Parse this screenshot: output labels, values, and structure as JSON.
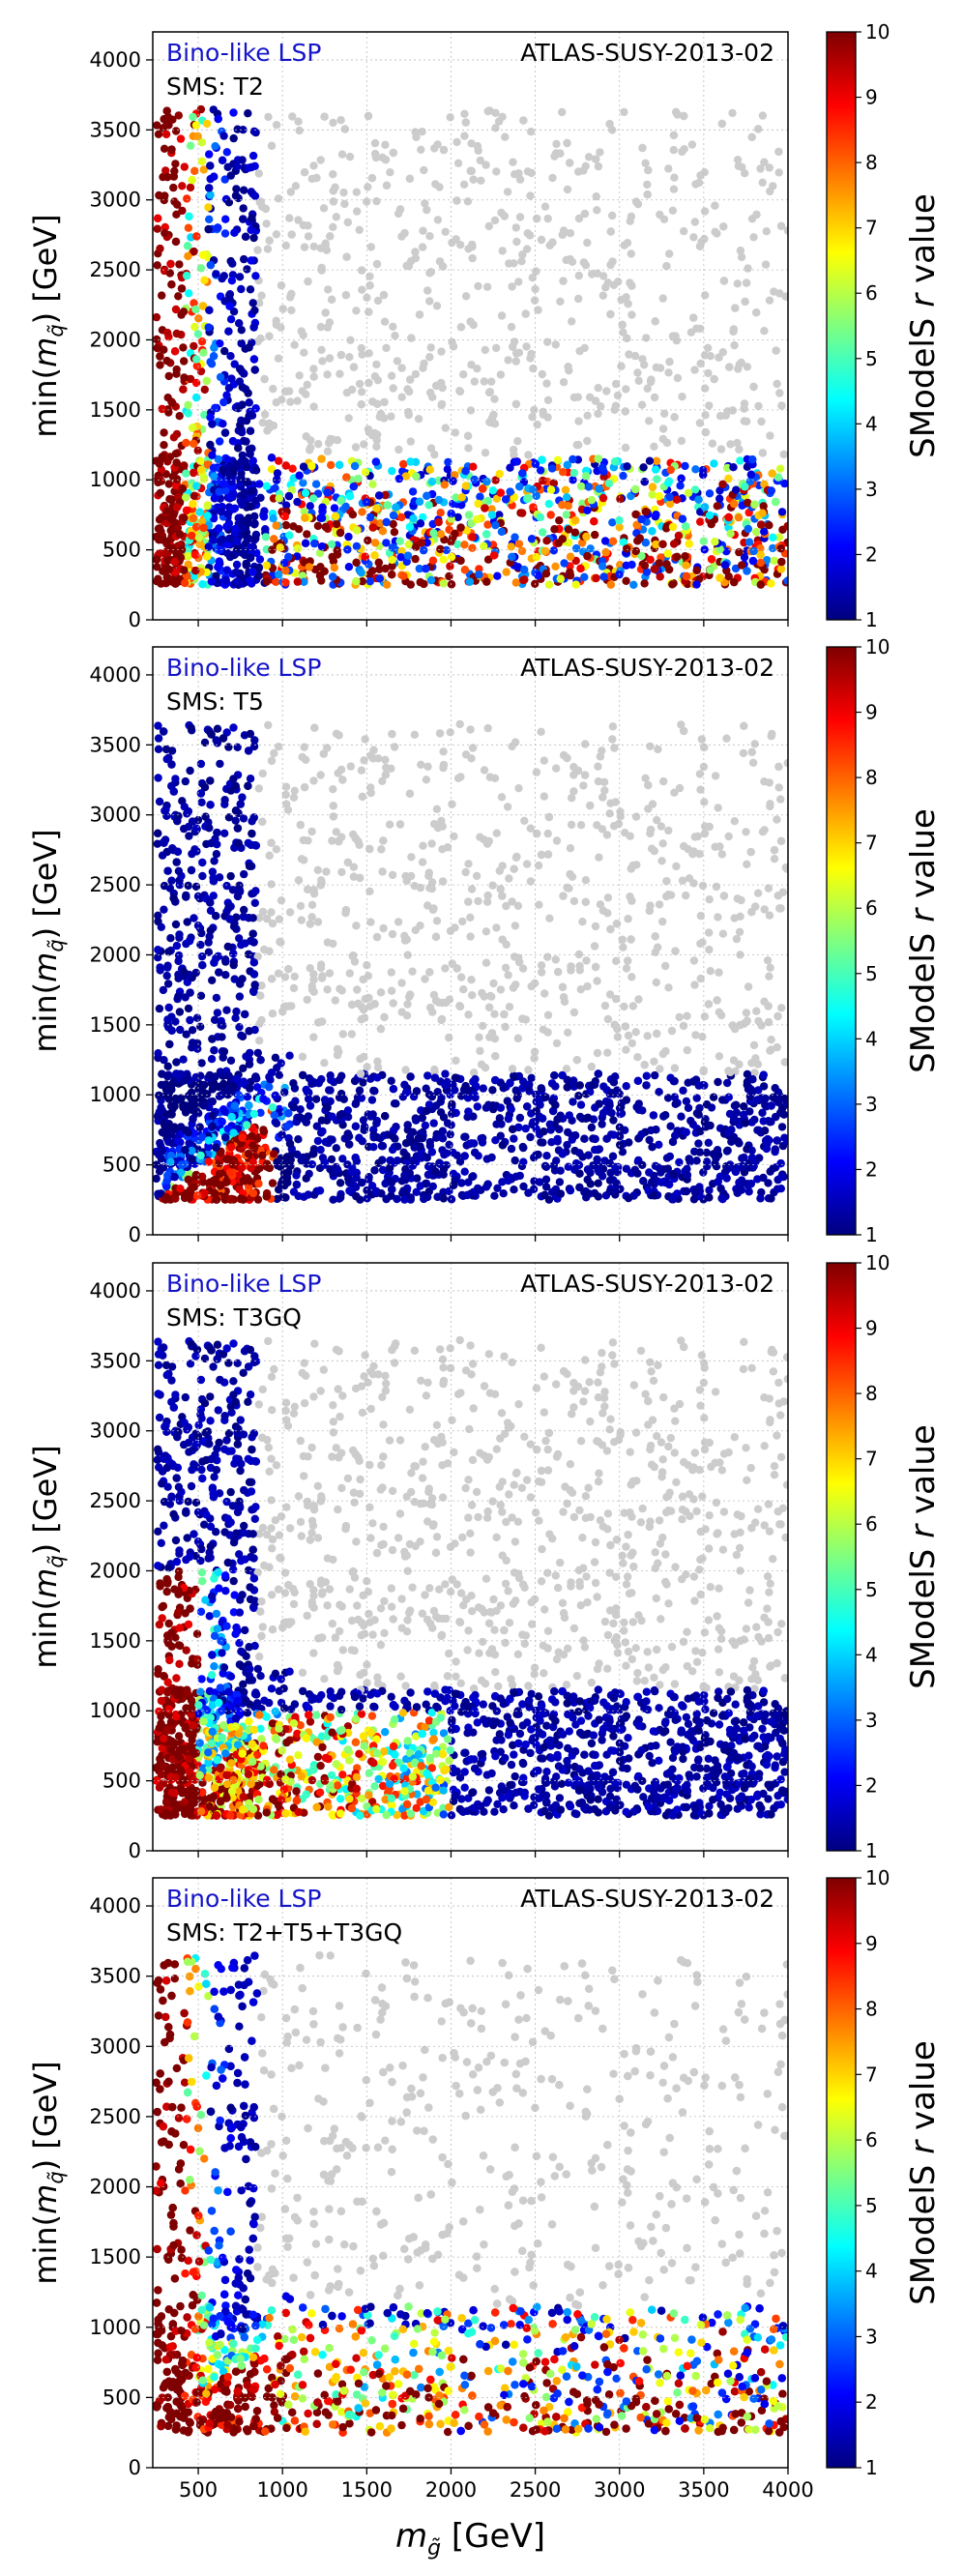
{
  "colorbar": {
    "label_prefix": "SModelS ",
    "label_var": "r",
    "label_suffix": " value",
    "range": [
      1,
      10
    ],
    "ticks": [
      "1",
      "2",
      "3",
      "4",
      "5",
      "6",
      "7",
      "8",
      "9",
      "10"
    ],
    "colors": [
      "#00007f",
      "#0000ff",
      "#007fff",
      "#00ffff",
      "#7fff7f",
      "#ffff00",
      "#ff7f00",
      "#ff0000",
      "#7f0000"
    ]
  },
  "shared_xaxis": {
    "label_main": "m",
    "label_sub": "g̃",
    "label_unit": " [GeV]",
    "range": [
      230,
      4000
    ],
    "ticks": [
      "500",
      "1000",
      "1500",
      "2000",
      "2500",
      "3000",
      "3500",
      "4000"
    ]
  },
  "yaxis": {
    "label_prefix": "min(",
    "label_main": "m",
    "label_sub": "q̃",
    "label_suffix": ") [GeV]",
    "range": [
      0,
      4200
    ],
    "ticks": [
      "0",
      "500",
      "1000",
      "1500",
      "2000",
      "2500",
      "3000",
      "3500",
      "4000"
    ]
  },
  "chart_data": [
    {
      "type": "scatter",
      "lsp_label": "Bino-like LSP",
      "analysis": "ATLAS-SUSY-2013-02",
      "sms": "SMS: T2",
      "color_variable": "r",
      "excluded_color": "#cccccc",
      "grid": true
    },
    {
      "type": "scatter",
      "lsp_label": "Bino-like LSP",
      "analysis": "ATLAS-SUSY-2013-02",
      "sms": "SMS: T5",
      "color_variable": "r",
      "excluded_color": "#cccccc",
      "grid": true
    },
    {
      "type": "scatter",
      "lsp_label": "Bino-like LSP",
      "analysis": "ATLAS-SUSY-2013-02",
      "sms": "SMS: T3GQ",
      "color_variable": "r",
      "excluded_color": "#cccccc",
      "grid": true
    },
    {
      "type": "scatter",
      "lsp_label": "Bino-like LSP",
      "analysis": "ATLAS-SUSY-2013-02",
      "sms": "SMS: T2+T5+T3GQ",
      "color_variable": "r",
      "excluded_color": "#cccccc",
      "grid": true
    }
  ]
}
